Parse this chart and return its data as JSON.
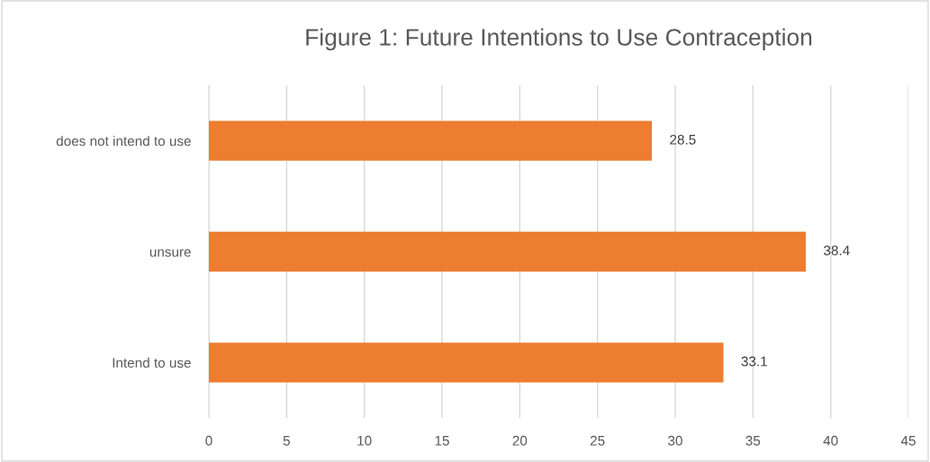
{
  "chart_data": {
    "type": "bar",
    "orientation": "horizontal",
    "title": "Figure 1: Future Intentions to Use Contraception",
    "categories": [
      "does not intend to use",
      "unsure",
      "Intend to use"
    ],
    "values": [
      28.5,
      38.4,
      33.1
    ],
    "color": "#ed7d31",
    "xlim": [
      0,
      45
    ],
    "xticks": [
      0,
      5,
      10,
      15,
      20,
      25,
      30,
      35,
      40,
      45
    ],
    "grid": "x",
    "data_labels": true
  }
}
